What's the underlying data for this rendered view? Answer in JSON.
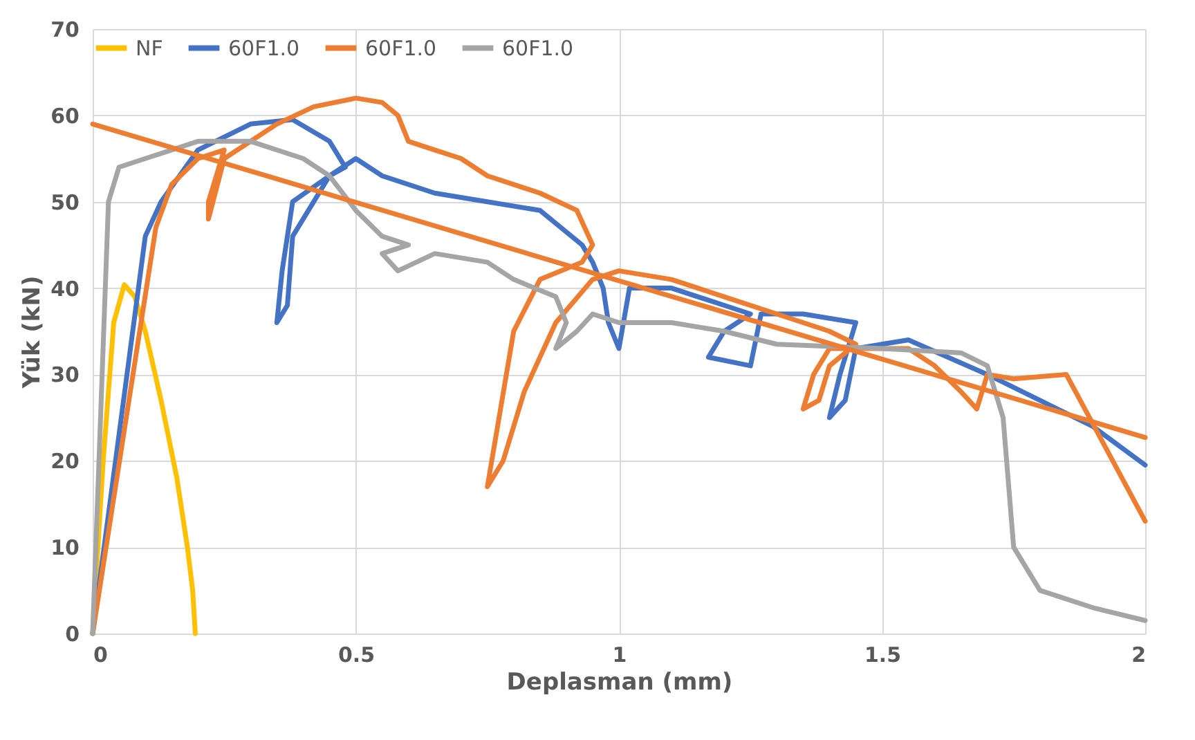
{
  "chart_data": {
    "type": "line",
    "xlabel": "Deplasman (mm)",
    "ylabel": "Yük (kN)",
    "xlim": [
      0,
      2
    ],
    "xticks": [
      0,
      0.5,
      1,
      1.5,
      2
    ],
    "ylim": [
      0,
      70
    ],
    "yticks": [
      0,
      10,
      20,
      30,
      40,
      50,
      60,
      70
    ],
    "grid": true,
    "legend": "top",
    "line_style": "solid",
    "marker": "none",
    "series": [
      {
        "name": "NF",
        "color": "#ffc000",
        "x": [
          0,
          0.02,
          0.04,
          0.06,
          0.08,
          0.1,
          0.13,
          0.16,
          0.18,
          0.19,
          0.195
        ],
        "values": [
          0,
          20,
          36,
          40.4,
          39,
          35,
          27,
          18,
          10,
          5,
          0
        ]
      },
      {
        "name": "60F1.0",
        "color": "#4472c4",
        "x": [
          0,
          0.1,
          0.13,
          0.2,
          0.3,
          0.38,
          0.45,
          0.48,
          0.45,
          0.38,
          0.36,
          0.35,
          0.37,
          0.38,
          0.45,
          0.5,
          0.55,
          0.65,
          0.75,
          0.85,
          0.93,
          0.95,
          0.97,
          0.98,
          1.0,
          1.02,
          1.1,
          1.2,
          1.25,
          1.2,
          1.17,
          1.25,
          1.27,
          1.35,
          1.45,
          1.42,
          1.4,
          1.43,
          1.45,
          1.55,
          1.7,
          1.8,
          1.9,
          2.0
        ],
        "values": [
          0,
          46,
          50,
          56,
          59,
          59.5,
          57,
          54,
          53,
          50,
          42,
          36,
          38,
          46,
          53,
          55,
          53,
          51,
          50,
          49,
          45,
          43,
          40,
          36,
          33,
          40,
          40,
          38,
          37,
          35,
          32,
          31,
          37,
          37,
          36,
          30,
          25,
          27,
          33,
          34,
          30,
          27,
          24,
          19.5
        ]
      },
      {
        "name": "60F1.0",
        "color": "#ed7d31",
        "x": [
          0,
          0.12,
          0.15,
          0.2,
          0.25,
          0.22,
          0.22,
          0.25,
          0.35,
          0.42,
          0.5,
          0.55,
          0.58,
          0.6,
          0.65,
          0.7,
          0.75,
          0.85,
          0.92,
          0.95,
          0.93,
          0.85,
          0.8,
          0.75,
          0.78,
          0.82,
          0.88,
          0.95,
          1.0,
          1.1,
          1.2,
          1.3,
          1.4,
          1.45,
          1.4,
          1.38,
          1.35,
          1.37,
          1.4,
          1.55,
          1.6,
          1.65,
          1.68,
          1.7,
          1.75,
          1.85,
          2.0
        ],
        "values": [
          0,
          47,
          52,
          55,
          56,
          50,
          48,
          55,
          59,
          61,
          62,
          61.5,
          60,
          57,
          56,
          55,
          53,
          51,
          49,
          45,
          43,
          41,
          35,
          17,
          20,
          28,
          36,
          41,
          42,
          41,
          39,
          37,
          35,
          33.5,
          31,
          27,
          26,
          30,
          33,
          33,
          31,
          28,
          26,
          30,
          29.5,
          30,
          13
        ]
      },
      {
        "name": "60F1.0",
        "color": "#a5a5a5",
        "x": [
          0,
          0.03,
          0.05,
          0.1,
          0.15,
          0.2,
          0.3,
          0.4,
          0.45,
          0.5,
          0.55,
          0.6,
          0.55,
          0.58,
          0.65,
          0.75,
          0.8,
          0.88,
          0.9,
          0.88,
          0.92,
          0.95,
          1.0,
          1.1,
          1.2,
          1.3,
          1.5,
          1.65,
          1.7,
          1.73,
          1.75,
          1.8,
          1.9,
          2.0
        ],
        "values": [
          0,
          50,
          54,
          55,
          56,
          57,
          57,
          55,
          53,
          49,
          46,
          45,
          44,
          42,
          44,
          43,
          41,
          39,
          36,
          33,
          35,
          37,
          36,
          36,
          35,
          33.5,
          33,
          32.5,
          31,
          25,
          10,
          5,
          3,
          1.5
        ]
      },
      {
        "color": "#ed7d31",
        "x": [
          0,
          2
        ],
        "values": [
          59,
          22.7
        ]
      }
    ]
  }
}
